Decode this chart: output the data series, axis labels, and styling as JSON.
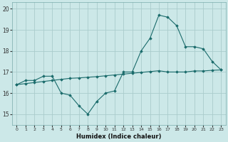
{
  "xlabel": "Humidex (Indice chaleur)",
  "bg_color": "#cce8e8",
  "grid_color": "#aacccc",
  "line_color": "#1a6b6b",
  "x_hours": [
    0,
    1,
    2,
    3,
    4,
    5,
    6,
    7,
    8,
    9,
    10,
    11,
    12,
    13,
    14,
    15,
    16,
    17,
    18,
    19,
    20,
    21,
    22,
    23
  ],
  "line1_y": [
    16.4,
    16.6,
    16.6,
    16.8,
    16.8,
    16.0,
    15.9,
    15.4,
    15.0,
    15.6,
    16.0,
    16.1,
    17.0,
    17.0,
    18.0,
    18.6,
    19.7,
    19.6,
    19.2,
    18.2,
    18.2,
    18.1,
    17.5,
    17.1
  ],
  "line2_y": [
    16.4,
    16.45,
    16.5,
    16.55,
    16.6,
    16.65,
    16.7,
    16.72,
    16.75,
    16.78,
    16.82,
    16.86,
    16.9,
    16.94,
    16.98,
    17.02,
    17.06,
    17.0,
    17.0,
    17.0,
    17.05,
    17.05,
    17.08,
    17.1
  ],
  "ylim": [
    14.5,
    20.3
  ],
  "xlim": [
    -0.5,
    23.5
  ],
  "yticks": [
    15,
    16,
    17,
    18,
    19,
    20
  ],
  "xticks": [
    0,
    1,
    2,
    3,
    4,
    5,
    6,
    7,
    8,
    9,
    10,
    11,
    12,
    13,
    14,
    15,
    16,
    17,
    18,
    19,
    20,
    21,
    22,
    23
  ]
}
